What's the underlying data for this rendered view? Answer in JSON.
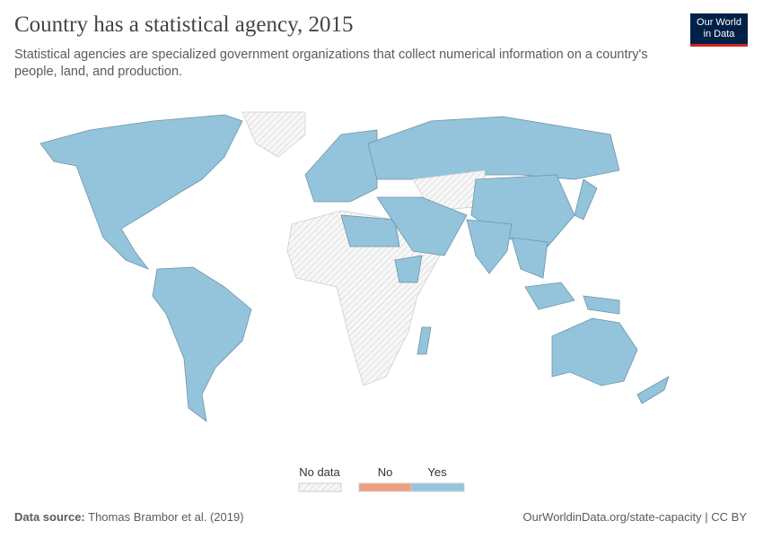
{
  "header": {
    "title": "Country has a statistical agency, 2015",
    "subtitle": "Statistical agencies are specialized government organizations that collect numerical information on a country's people, land, and production."
  },
  "logo": {
    "line1": "Our World",
    "line2": "in Data"
  },
  "legend": {
    "items": [
      {
        "label": "No data"
      },
      {
        "label": "No"
      },
      {
        "label": "Yes"
      }
    ]
  },
  "footer": {
    "source_label": "Data source:",
    "source": "Thomas Brambor et al. (2019)",
    "link": "OurWorldinData.org/state-capacity | CC BY"
  }
}
